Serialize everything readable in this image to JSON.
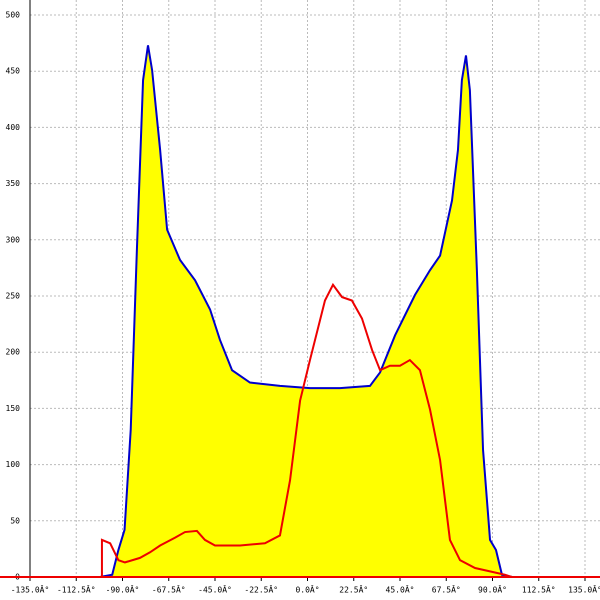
{
  "chart_data": {
    "type": "area",
    "xlim": [
      -135,
      135
    ],
    "ylim": [
      0,
      500
    ],
    "xticks": [
      {
        "value": -135,
        "label": "-135.0Â°"
      },
      {
        "value": -112.5,
        "label": "-112.5Â°"
      },
      {
        "value": -90,
        "label": "-90.0Â°"
      },
      {
        "value": -67.5,
        "label": "-67.5Â°"
      },
      {
        "value": -45,
        "label": "-45.0Â°"
      },
      {
        "value": -22.5,
        "label": "-22.5Â°"
      },
      {
        "value": 0,
        "label": "0.0Â°"
      },
      {
        "value": 22.5,
        "label": "22.5Â°"
      },
      {
        "value": 45,
        "label": "45.0Â°"
      },
      {
        "value": 67.5,
        "label": "67.5Â°"
      },
      {
        "value": 90,
        "label": "90.0Â°"
      },
      {
        "value": 112.5,
        "label": "112.5Â°"
      },
      {
        "value": 135,
        "label": "135.0Â°"
      }
    ],
    "yticks": [
      0,
      50,
      100,
      150,
      200,
      250,
      300,
      350,
      400,
      450,
      500
    ],
    "grid": true,
    "series": [
      {
        "color": "#0000cc",
        "fill": "#ffff00",
        "x": [
          -101,
          -95,
          -92,
          -89,
          -86,
          -83,
          -80,
          -77.6,
          -75.6,
          -71.7,
          -68.3,
          -62,
          -54.7,
          -47.4,
          -42.6,
          -36.7,
          -28,
          -13.4,
          1.2,
          15.8,
          30.4,
          35.3,
          42.6,
          52.3,
          59.6,
          64.5,
          70.3,
          73.2,
          75.1,
          77.1,
          79,
          82.4,
          85.4,
          88.8,
          91.7,
          94.6,
          99.5
        ],
        "values": [
          0,
          2,
          24,
          42,
          131,
          291,
          442,
          473,
          451,
          380,
          309,
          282,
          264,
          238,
          211,
          184,
          173,
          170,
          168,
          168,
          170,
          182,
          215,
          251,
          273,
          286,
          335,
          380,
          442,
          464,
          433,
          273,
          113,
          33,
          24,
          2,
          0
        ]
      },
      {
        "color": "#ee0000",
        "x": [
          -100,
          -100,
          -96,
          -92,
          -88.8,
          -81.5,
          -76.6,
          -71.7,
          -64.4,
          -59.6,
          -53.8,
          -49.9,
          -45,
          -32.8,
          -20.7,
          -13.4,
          -8.5,
          -3.6,
          1.2,
          8.5,
          12.4,
          16.8,
          21.6,
          26.5,
          31.4,
          35.3,
          40.1,
          45,
          49.8,
          54.7,
          59.6,
          64.5,
          69.3,
          74.2,
          81.5,
          91.2,
          96,
          99.5
        ],
        "values": [
          0,
          33,
          30,
          15,
          13,
          17,
          22,
          28,
          35,
          40,
          41,
          33,
          28,
          28,
          30,
          37,
          86,
          157,
          193,
          246,
          260,
          249,
          246,
          230,
          202,
          184,
          188,
          188,
          193,
          184,
          149,
          104,
          33,
          15,
          8,
          4,
          2,
          0
        ]
      }
    ]
  }
}
